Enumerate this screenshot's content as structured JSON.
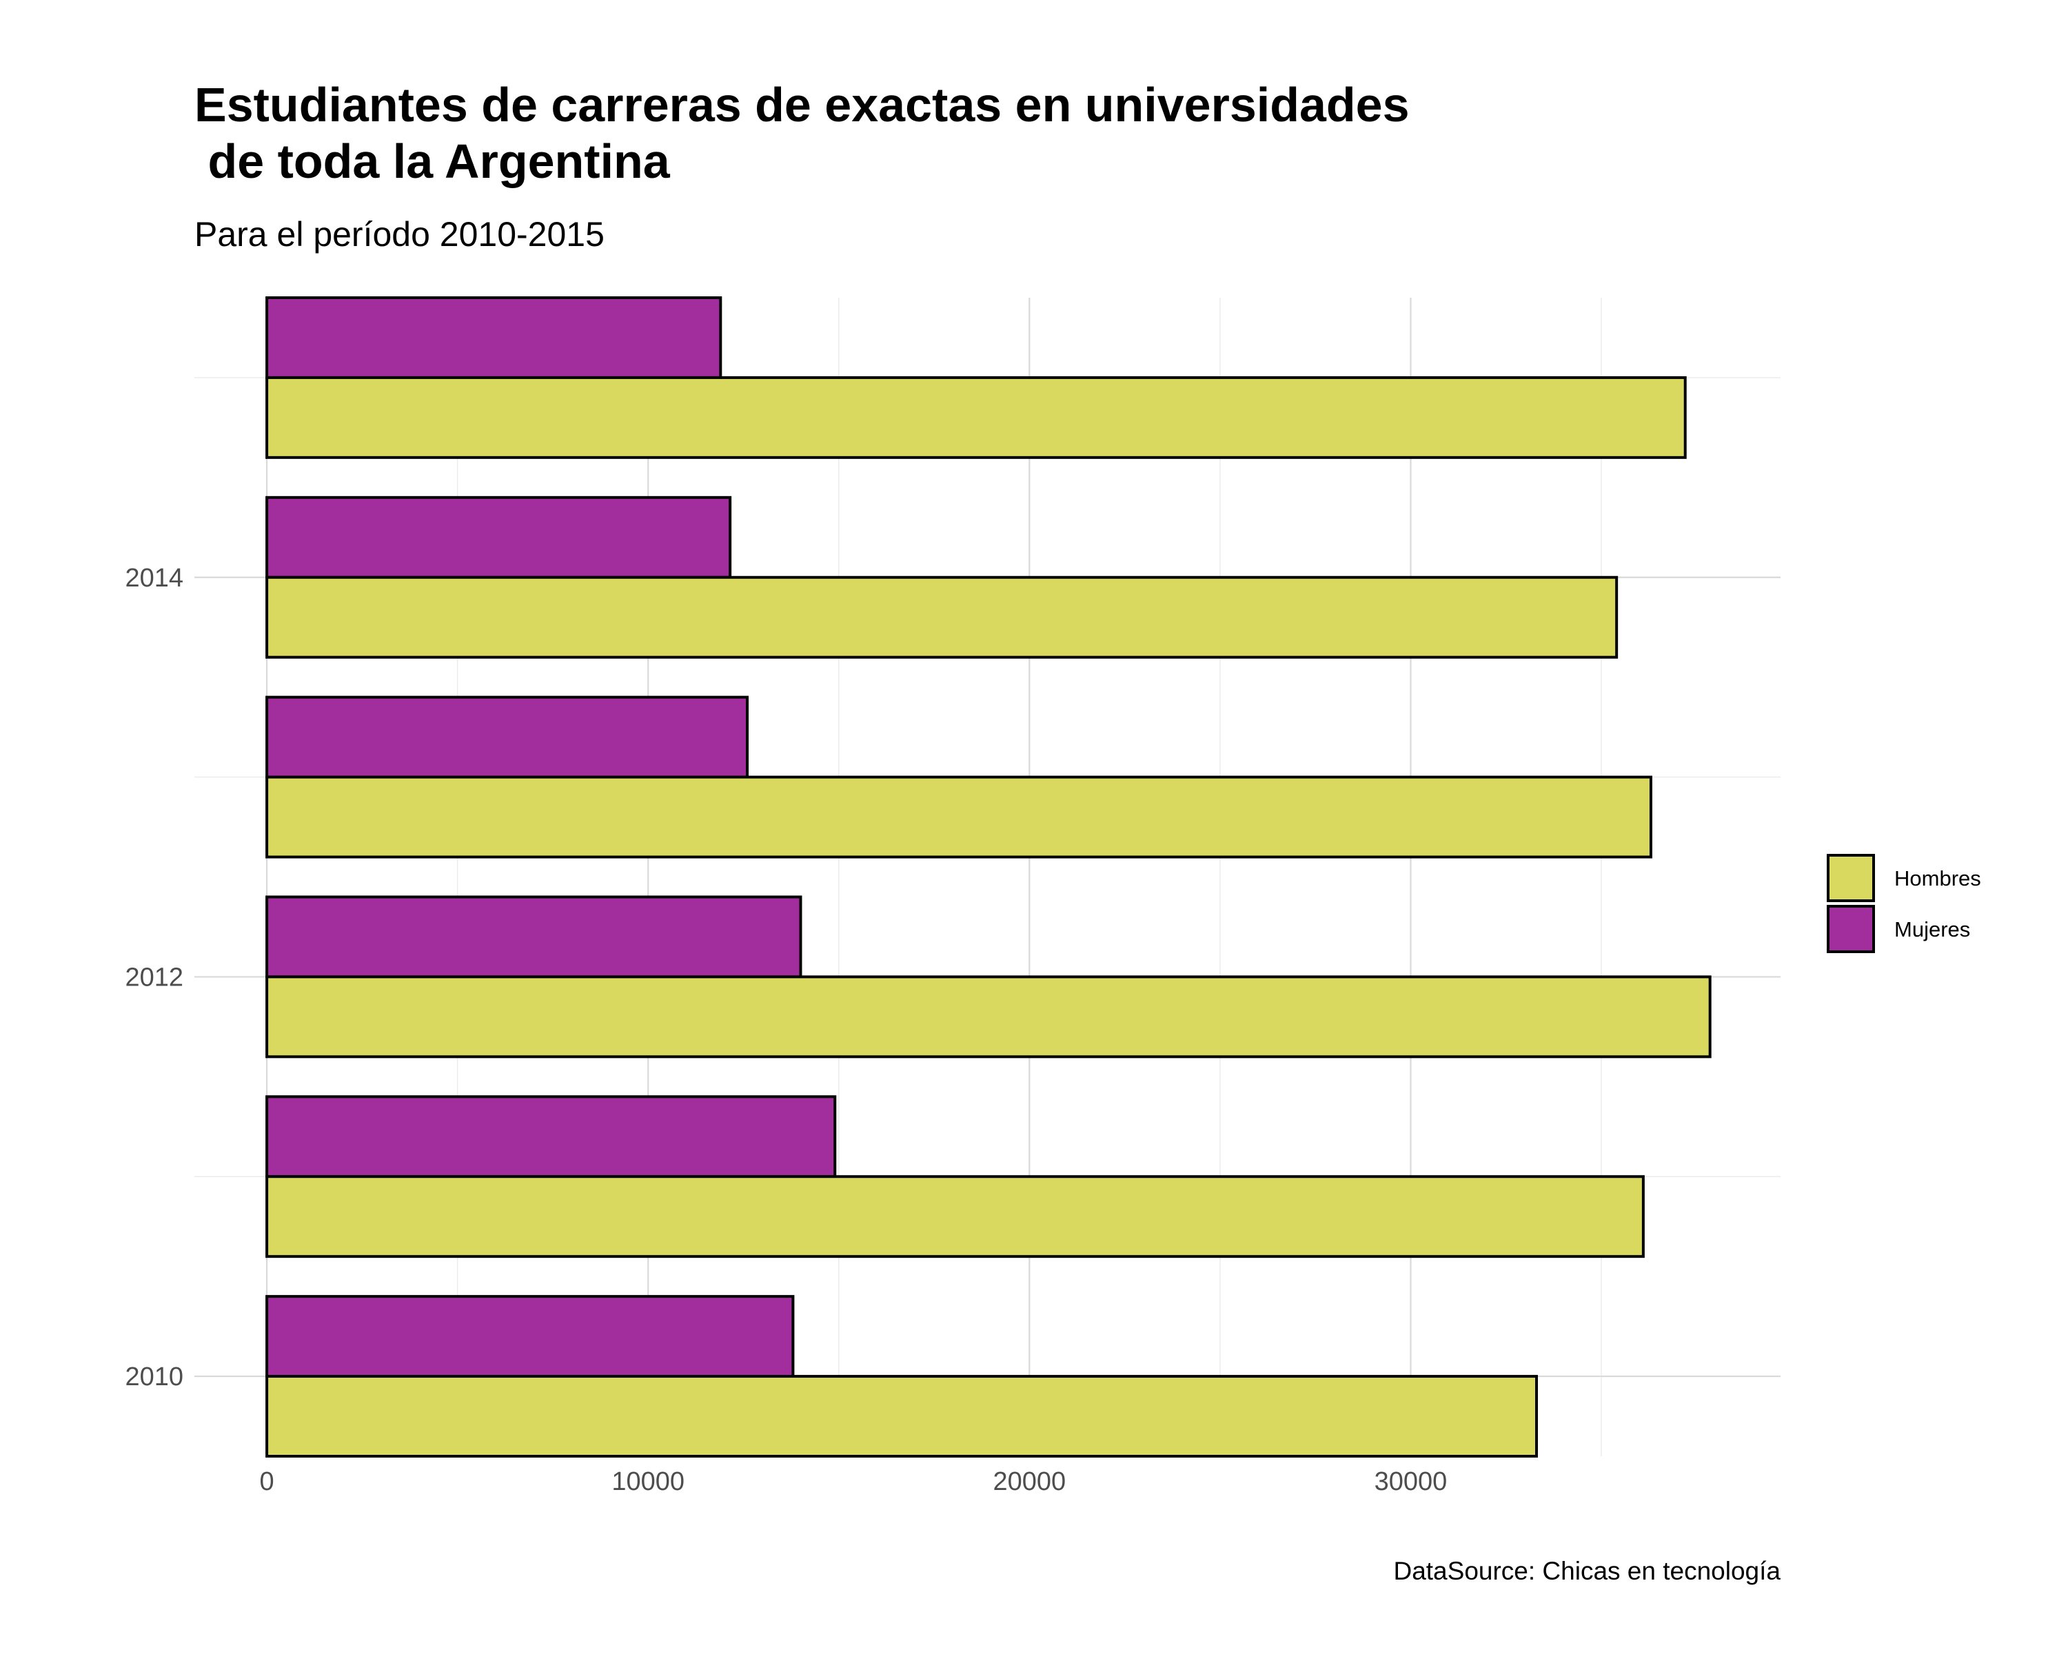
{
  "chart_data": {
    "type": "bar",
    "orientation": "horizontal",
    "title_lines": [
      "Estudiantes de carreras de exactas en universidades",
      " de toda la Argentina"
    ],
    "subtitle": "Para el período 2010-2015",
    "caption": "DataSource: Chicas en tecnología",
    "categories": [
      2010,
      2011,
      2012,
      2013,
      2014,
      2015
    ],
    "y_tick_labels": [
      "2010",
      "2012",
      "2014"
    ],
    "x_tick_labels": [
      "0",
      "10000",
      "20000",
      "30000"
    ],
    "xlim": [
      -1900,
      39700
    ],
    "ylim": [
      2009.6,
      2015.4
    ],
    "grid": true,
    "legend_position": "right",
    "series": [
      {
        "name": "Hombres",
        "color": "#d9d95f",
        "values": [
          33300,
          36100,
          37850,
          36300,
          35400,
          37200
        ]
      },
      {
        "name": "Mujeres",
        "color": "#a22e9e",
        "values": [
          13800,
          14900,
          14000,
          12600,
          12150,
          11900
        ]
      }
    ]
  }
}
